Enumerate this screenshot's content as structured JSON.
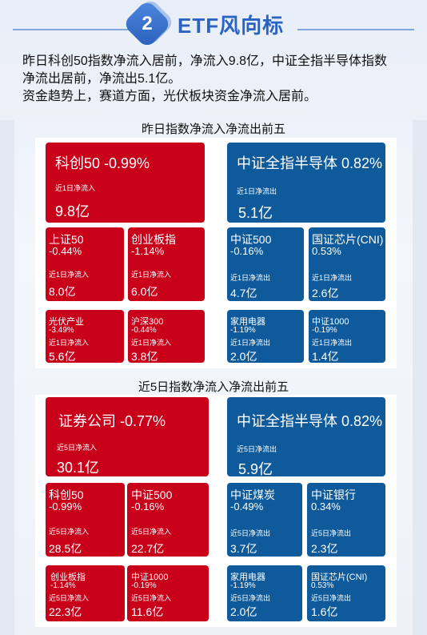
{
  "header": {
    "number": "2",
    "title": "ETF风向标"
  },
  "intro": {
    "lines": [
      "昨日科创50指数净流入居前，净流入9.8亿，中证全指半导体指数",
      "净流出居前，净流出5.1亿。",
      "资金趋势上，赛道方面，光伏板块资金净流入居前。"
    ]
  },
  "section1": {
    "title": "昨日指数净流入净流出前五",
    "inflow_label": "近1日净流入",
    "outflow_label": "近1日净流出",
    "inflow": [
      {
        "name": "科创50 -0.99%",
        "value": "9.8亿"
      },
      {
        "name": "上证50",
        "change": "-0.44%",
        "value": "8.0亿"
      },
      {
        "name": "创业板指",
        "change": "-1.14%",
        "value": "6.0亿"
      },
      {
        "name": "光伏产业",
        "change": "-3.49%",
        "value": "5.6亿"
      },
      {
        "name": "沪深300",
        "change": "-0.44%",
        "value": "3.8亿"
      }
    ],
    "outflow": [
      {
        "name": "中证全指半导体 0.82%",
        "value": "5.1亿"
      },
      {
        "name": "中证500",
        "change": "-0.16%",
        "value": "4.7亿"
      },
      {
        "name": "国证芯片(CNI)",
        "change": "0.53%",
        "value": "2.6亿"
      },
      {
        "name": "家用电器",
        "change": "-1.19%",
        "value": "2.0亿"
      },
      {
        "name": "中证1000",
        "change": "-0.19%",
        "value": "1.4亿"
      }
    ]
  },
  "section2": {
    "title": "近5日指数净流入净流出前五",
    "inflow_label": "近5日净流入",
    "outflow_label": "近5日净流出",
    "inflow": [
      {
        "name": "证券公司 -0.77%",
        "value": "30.1亿"
      },
      {
        "name": "科创50",
        "change": "-0.99%",
        "value": "28.5亿"
      },
      {
        "name": "中证500",
        "change": "-0.16%",
        "value": "22.7亿"
      },
      {
        "name": "创业板指",
        "change": "-1.14%",
        "value": "22.3亿"
      },
      {
        "name": "中证1000",
        "change": "-0.19%",
        "value": "11.6亿"
      }
    ],
    "outflow": [
      {
        "name": "中证全指半导体 0.82%",
        "value": "5.9亿"
      },
      {
        "name": "中证煤炭",
        "change": "-0.49%",
        "value": "3.7亿"
      },
      {
        "name": "中证银行",
        "change": "0.34%",
        "value": "2.3亿"
      },
      {
        "name": "家用电器",
        "change": "-1.19%",
        "value": "2.0亿"
      },
      {
        "name": "国证芯片(CNI)",
        "change": "0.53%",
        "value": "1.6亿"
      }
    ]
  },
  "colors": {
    "inflow": "#c8001a",
    "outflow": "#0f5a9b",
    "accent": "#2a63c2"
  }
}
